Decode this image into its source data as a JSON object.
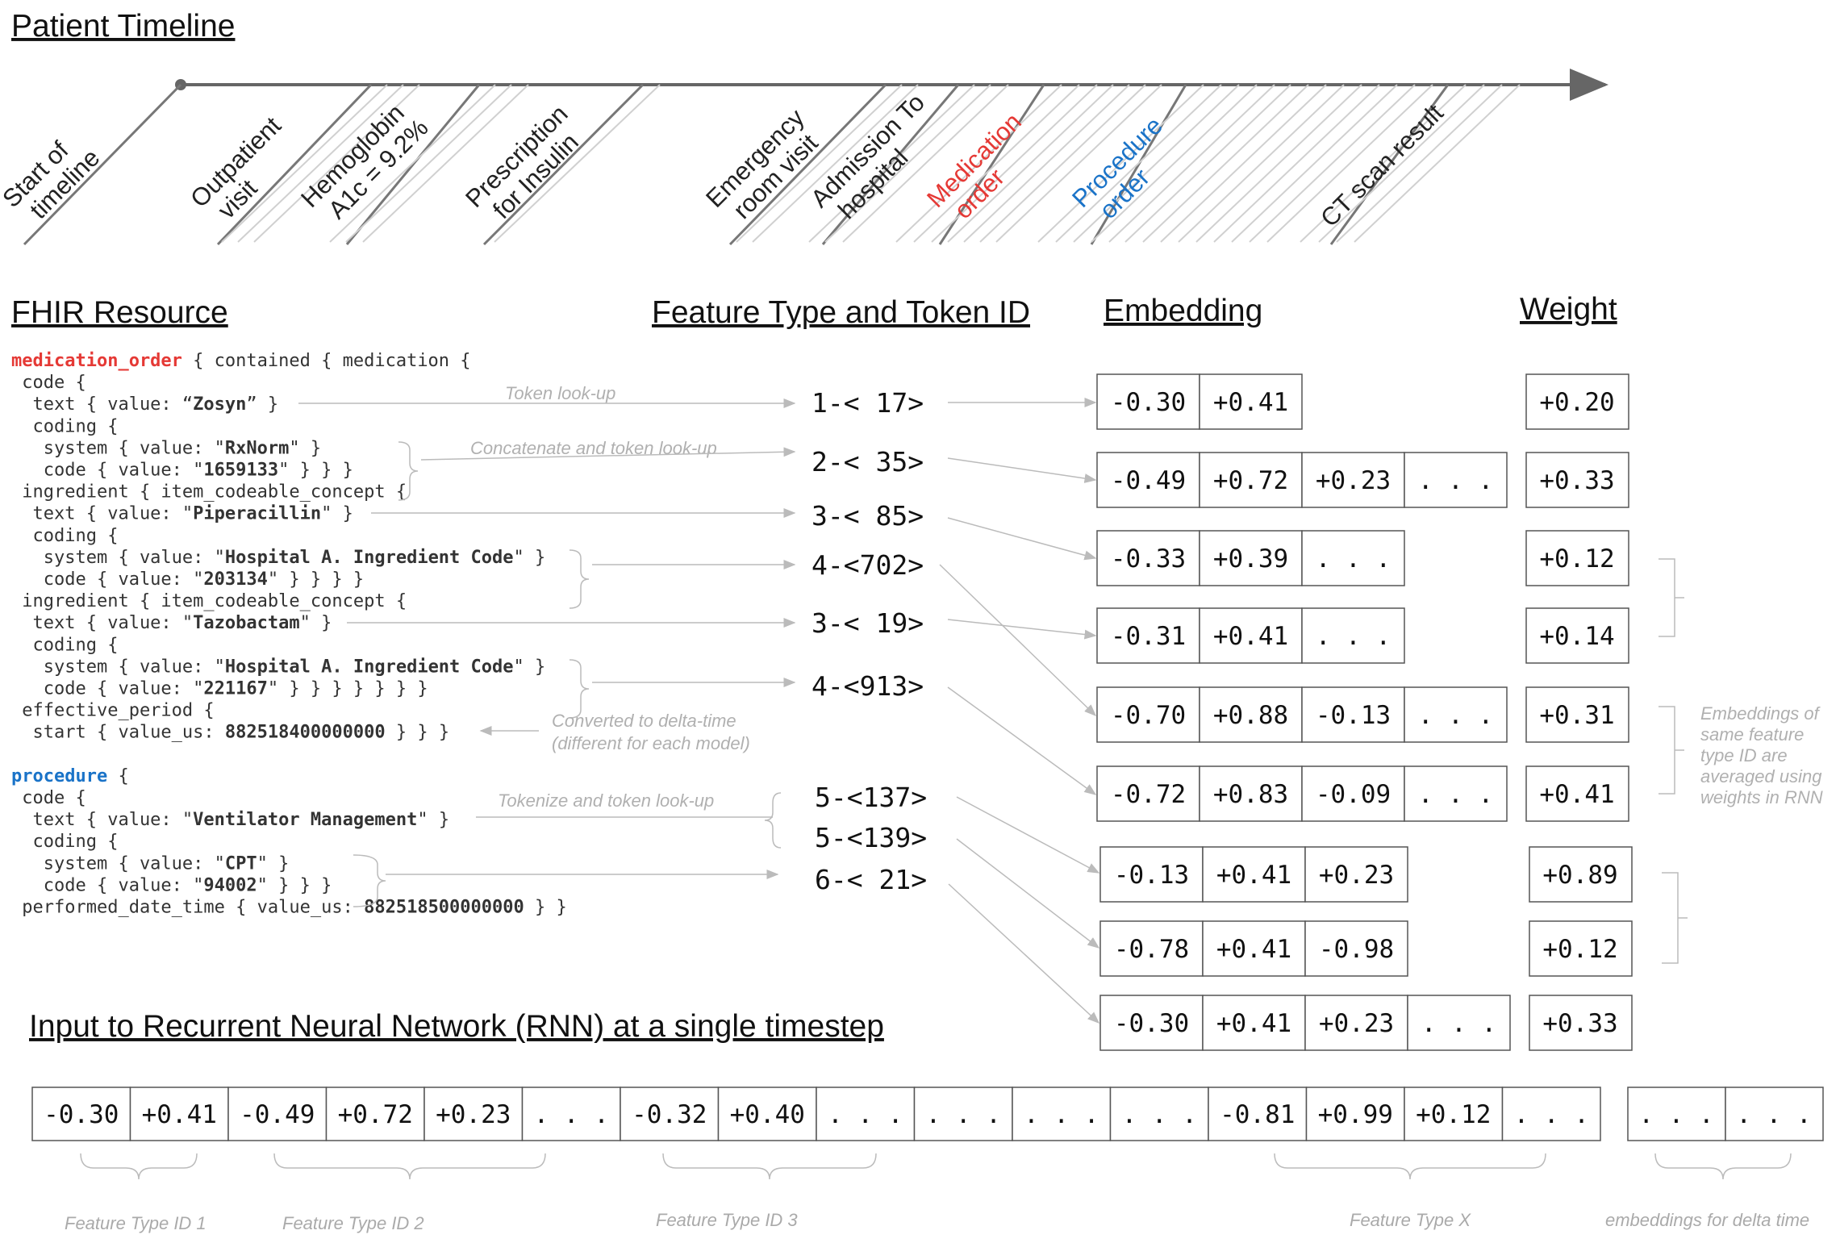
{
  "headings": {
    "timeline": "Patient Timeline",
    "fhir": "FHIR Resource",
    "feature": "Feature Type and Token ID",
    "embedding": "Embedding",
    "weight": "Weight",
    "rnn": "Input to Recurrent Neural Network (RNN) at a single timestep"
  },
  "timeline_events": [
    {
      "lines": [
        "Start of",
        "timeline"
      ],
      "color": "#222222"
    },
    {
      "lines": [
        "Outpatient",
        "visit"
      ],
      "color": "#222222"
    },
    {
      "lines": [
        "Hemoglobin",
        "A1c = 9.2%"
      ],
      "color": "#222222"
    },
    {
      "lines": [
        "Prescription",
        "for Insulin"
      ],
      "color": "#222222"
    },
    {
      "lines": [
        "Emergency",
        "room visit"
      ],
      "color": "#222222"
    },
    {
      "lines": [
        "Admission To",
        "hospital"
      ],
      "color": "#222222"
    },
    {
      "lines": [
        "Medication",
        "order"
      ],
      "color": "#e53935"
    },
    {
      "lines": [
        "Procedure",
        "order"
      ],
      "color": "#1a73c8"
    },
    {
      "lines": [
        "CT scan result"
      ],
      "color": "#222222"
    }
  ],
  "fhir_code": [
    [
      {
        "t": "medication_order",
        "s": "red"
      },
      {
        "t": " { contained { medication {"
      }
    ],
    [
      {
        "t": " code {"
      }
    ],
    [
      {
        "t": "  text { value: “"
      },
      {
        "t": "Zosyn",
        "s": "b"
      },
      {
        "t": "” }"
      }
    ],
    [
      {
        "t": "  coding {"
      }
    ],
    [
      {
        "t": "   system { value: \""
      },
      {
        "t": "RxNorm",
        "s": "b"
      },
      {
        "t": "\" }"
      }
    ],
    [
      {
        "t": "   code { value: \""
      },
      {
        "t": "1659133",
        "s": "b"
      },
      {
        "t": "\" } } }"
      }
    ],
    [
      {
        "t": " ingredient { item_codeable_concept {"
      }
    ],
    [
      {
        "t": "  text { value: \""
      },
      {
        "t": "Piperacillin",
        "s": "b"
      },
      {
        "t": "\" }"
      }
    ],
    [
      {
        "t": "  coding {"
      }
    ],
    [
      {
        "t": "   system { value: \""
      },
      {
        "t": "Hospital A. Ingredient Code",
        "s": "b"
      },
      {
        "t": "\" }"
      }
    ],
    [
      {
        "t": "   code { value: \""
      },
      {
        "t": "203134",
        "s": "b"
      },
      {
        "t": "\" } } } }"
      }
    ],
    [
      {
        "t": " ingredient { item_codeable_concept {"
      }
    ],
    [
      {
        "t": "  text { value: \""
      },
      {
        "t": "Tazobactam",
        "s": "b"
      },
      {
        "t": "\" }"
      }
    ],
    [
      {
        "t": "  coding {"
      }
    ],
    [
      {
        "t": "   system { value: \""
      },
      {
        "t": "Hospital A. Ingredient Code",
        "s": "b"
      },
      {
        "t": "\" }"
      }
    ],
    [
      {
        "t": "   code { value: \""
      },
      {
        "t": "221167",
        "s": "b"
      },
      {
        "t": "\" } } } } } } }"
      }
    ],
    [
      {
        "t": " effective_period {"
      }
    ],
    [
      {
        "t": "  start { value_us: "
      },
      {
        "t": "882518400000000",
        "s": "b"
      },
      {
        "t": " } } }"
      }
    ],
    [
      {
        "t": ""
      }
    ],
    [
      {
        "t": "procedure",
        "s": "blue"
      },
      {
        "t": " {"
      }
    ],
    [
      {
        "t": " code {"
      }
    ],
    [
      {
        "t": "  text { value: \""
      },
      {
        "t": "Ventilator Management",
        "s": "b"
      },
      {
        "t": "\" }"
      }
    ],
    [
      {
        "t": "  coding {"
      }
    ],
    [
      {
        "t": "   system { value: \""
      },
      {
        "t": "CPT",
        "s": "b"
      },
      {
        "t": "\" }"
      }
    ],
    [
      {
        "t": "   code { value: \""
      },
      {
        "t": "94002",
        "s": "b"
      },
      {
        "t": "\" } } }"
      }
    ],
    [
      {
        "t": " performed_date_time { value_us: "
      },
      {
        "t": "882518500000000",
        "s": "b"
      },
      {
        "t": " } }"
      }
    ]
  ],
  "annotations": {
    "token_lookup": "Token look-up",
    "concat_lookup": "Concatenate and token look-up",
    "delta_time": [
      "Converted to delta-time",
      "(different for each model)"
    ],
    "tokenize_lookup": "Tokenize and token look-up",
    "averaged": [
      "Embeddings of",
      "same feature",
      "type ID  are",
      "averaged using",
      "weights in RNN"
    ]
  },
  "tokens": [
    "1-< 17>",
    "2-< 35>",
    "3-< 85>",
    "4-<702>",
    "3-< 19>",
    "4-<913>",
    "5-<137>",
    "5-<139>",
    "6-< 21>"
  ],
  "embedding_rows": [
    {
      "cells": [
        "-0.30",
        "+0.41"
      ],
      "weight": "+0.20"
    },
    {
      "cells": [
        "-0.49",
        "+0.72",
        "+0.23",
        ". . ."
      ],
      "weight": "+0.33"
    },
    {
      "cells": [
        "-0.33",
        "+0.39",
        ". . ."
      ],
      "weight": "+0.12"
    },
    {
      "cells": [
        "-0.31",
        "+0.41",
        ". . ."
      ],
      "weight": "+0.14"
    },
    {
      "cells": [
        "-0.70",
        "+0.88",
        "-0.13",
        ". . ."
      ],
      "weight": "+0.31"
    },
    {
      "cells": [
        "-0.72",
        "+0.83",
        "-0.09",
        ". . ."
      ],
      "weight": "+0.41"
    },
    {
      "cells": [
        "-0.13",
        "+0.41",
        "+0.23"
      ],
      "weight": "+0.89"
    },
    {
      "cells": [
        "-0.78",
        "+0.41",
        "-0.98"
      ],
      "weight": "+0.12"
    },
    {
      "cells": [
        "-0.30",
        "+0.41",
        "+0.23",
        ". . ."
      ],
      "weight": "+0.33"
    }
  ],
  "rnn_cells": [
    "-0.30",
    "+0.41",
    "-0.49",
    "+0.72",
    "+0.23",
    ". . .",
    "-0.32",
    "+0.40",
    ". . .",
    ". . .",
    ". . .",
    ". . .",
    "-0.81",
    "+0.99",
    "+0.12",
    ". . ."
  ],
  "rnn_delta_cells": [
    ". . .",
    ". . ."
  ],
  "rnn_captions": [
    "Feature Type ID  1",
    "Feature Type ID  2",
    "Feature Type ID 3",
    "Feature Type X",
    "embeddings for delta time"
  ],
  "colors": {
    "red": "#e53935",
    "blue": "#1a73c8",
    "arrow": "#bbbbbb",
    "box": "#666666"
  }
}
